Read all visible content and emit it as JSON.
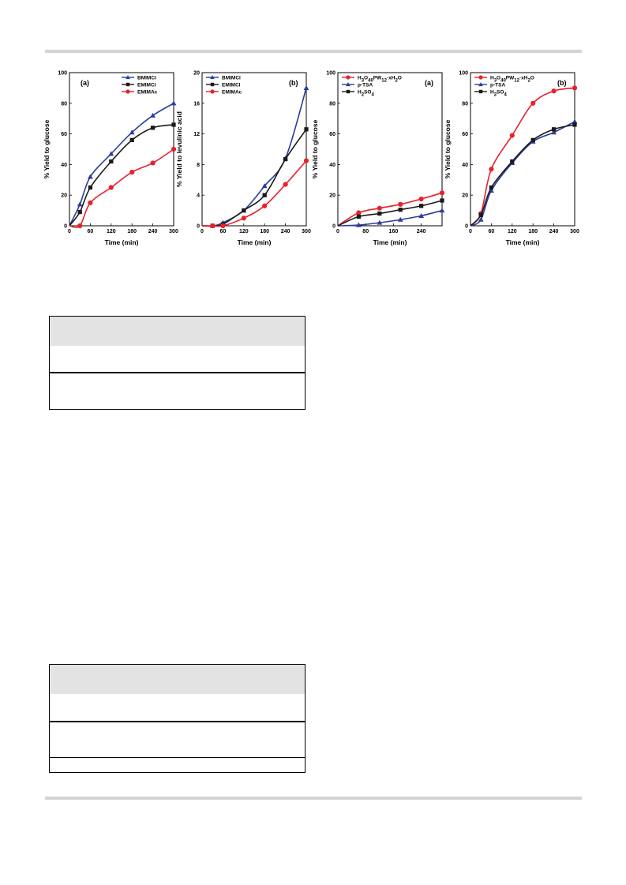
{
  "figures": [
    {
      "id": "f1",
      "label": "(a)"
    },
    {
      "id": "f2",
      "label": "(b)"
    },
    {
      "id": "f3",
      "label": "(a)"
    },
    {
      "id": "f4",
      "label": "(b)"
    }
  ],
  "colors": {
    "blue": "#2b3d9a",
    "black": "#1a1a1a",
    "red": "#e8212a",
    "rule": "#d4d4d4",
    "table_header": "#e3e3e3"
  },
  "chart_data": [
    {
      "type": "line",
      "label": "(a)",
      "xlabel": "Time (min)",
      "ylabel": "% Yield to glucose",
      "xlim": [
        0,
        300
      ],
      "ylim": [
        0,
        100
      ],
      "xticks": [
        0,
        60,
        120,
        180,
        240,
        300
      ],
      "yticks": [
        0,
        20,
        40,
        60,
        80,
        100
      ],
      "legend_position": "top-right",
      "series": [
        {
          "name": "BMIMCl",
          "marker": "triangle",
          "color": "#2b3d9a",
          "x": [
            0,
            30,
            60,
            120,
            180,
            240,
            300
          ],
          "y": [
            0,
            14,
            32,
            47,
            61,
            72,
            80
          ]
        },
        {
          "name": "EMIMCl",
          "marker": "square",
          "color": "#1a1a1a",
          "x": [
            0,
            30,
            60,
            120,
            180,
            240,
            300
          ],
          "y": [
            0,
            9,
            25,
            42,
            56,
            64,
            66
          ]
        },
        {
          "name": "EMIMAc",
          "marker": "circle",
          "color": "#e8212a",
          "x": [
            0,
            30,
            60,
            120,
            180,
            240,
            300
          ],
          "y": [
            0,
            0,
            15,
            25,
            35,
            41,
            50
          ]
        }
      ]
    },
    {
      "type": "line",
      "label": "(b)",
      "xlabel": "Time (min)",
      "ylabel": "% Yield to levulinic acid",
      "xlim": [
        0,
        300
      ],
      "ylim": [
        0,
        20
      ],
      "xticks": [
        0,
        60,
        120,
        180,
        240,
        300
      ],
      "yticks": [
        0,
        4,
        8,
        12,
        16,
        20
      ],
      "legend_position": "top-left",
      "series": [
        {
          "name": "BMIMCl",
          "marker": "triangle",
          "color": "#2b3d9a",
          "x": [
            0,
            30,
            60,
            120,
            180,
            240,
            300
          ],
          "y": [
            0,
            0,
            0.4,
            2,
            5.2,
            8.8,
            18
          ]
        },
        {
          "name": "EMIMCl",
          "marker": "square",
          "color": "#1a1a1a",
          "x": [
            0,
            30,
            60,
            120,
            180,
            240,
            300
          ],
          "y": [
            0,
            0,
            0.2,
            2,
            4,
            8.7,
            12.6
          ]
        },
        {
          "name": "EMIMAc",
          "marker": "circle",
          "color": "#e8212a",
          "x": [
            0,
            30,
            60,
            120,
            180,
            240,
            300
          ],
          "y": [
            0,
            0,
            0,
            1,
            2.6,
            5.4,
            8.5
          ]
        }
      ]
    },
    {
      "type": "line",
      "label": "(a)",
      "xlabel": "Time (min)",
      "ylabel": "% Yield to glucose",
      "xlim": [
        0,
        300
      ],
      "ylim": [
        0,
        100
      ],
      "xticks": [
        0,
        80,
        160,
        240
      ],
      "yticks": [
        0,
        20,
        40,
        60,
        80,
        100
      ],
      "legend_position": "top-left",
      "series": [
        {
          "name": "H3O40PW12·xH2O",
          "marker": "circle",
          "color": "#e8212a",
          "x": [
            0,
            60,
            120,
            180,
            240,
            300
          ],
          "y": [
            0,
            8.5,
            11.5,
            14,
            17.5,
            21.5
          ]
        },
        {
          "name": "p-TSA",
          "marker": "triangle",
          "color": "#2b3d9a",
          "x": [
            0,
            60,
            120,
            180,
            240,
            300
          ],
          "y": [
            0,
            0.5,
            2,
            4,
            6.5,
            10
          ]
        },
        {
          "name": "H2SO4",
          "marker": "square",
          "color": "#1a1a1a",
          "x": [
            0,
            60,
            120,
            180,
            240,
            300
          ],
          "y": [
            0,
            6,
            8,
            10.5,
            13,
            16.5
          ]
        }
      ]
    },
    {
      "type": "line",
      "label": "(b)",
      "xlabel": "Time (min)",
      "ylabel": "% Yield to glucose",
      "xlim": [
        0,
        300
      ],
      "ylim": [
        0,
        100
      ],
      "xticks": [
        0,
        60,
        120,
        180,
        240,
        300
      ],
      "yticks": [
        0,
        20,
        40,
        60,
        80,
        100
      ],
      "legend_position": "top-left",
      "series": [
        {
          "name": "H3O40PW12·xH2O",
          "marker": "circle",
          "color": "#e8212a",
          "x": [
            0,
            30,
            60,
            120,
            180,
            240,
            300
          ],
          "y": [
            0,
            8,
            37,
            59,
            80,
            88,
            90
          ]
        },
        {
          "name": "p-TSA",
          "marker": "triangle",
          "color": "#2b3d9a",
          "x": [
            0,
            30,
            60,
            120,
            180,
            240,
            300
          ],
          "y": [
            0,
            4,
            23,
            41,
            55,
            61,
            68
          ]
        },
        {
          "name": "H2SO4",
          "marker": "square",
          "color": "#1a1a1a",
          "x": [
            0,
            30,
            60,
            120,
            180,
            240,
            300
          ],
          "y": [
            0,
            7,
            25,
            42,
            56,
            63,
            66
          ]
        }
      ]
    }
  ]
}
